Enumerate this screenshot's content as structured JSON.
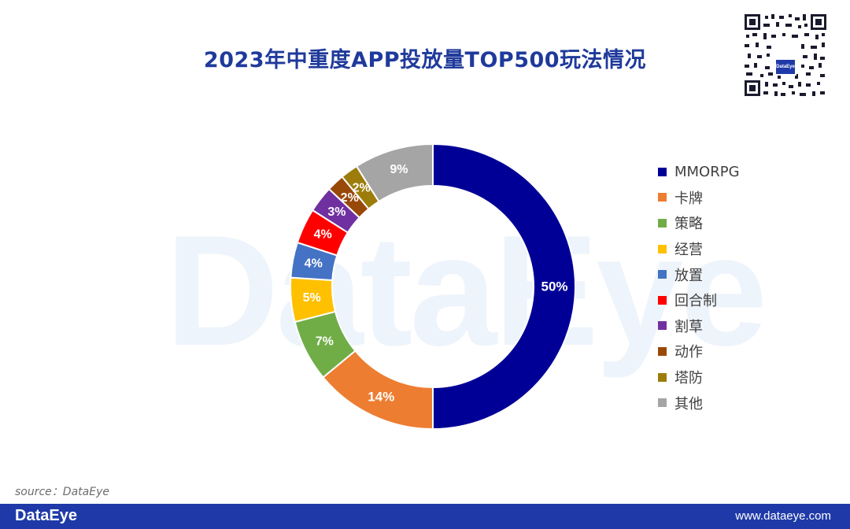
{
  "page": {
    "title": "2023年中重度APP投放量TOP500玩法情况",
    "watermark": "DataEye",
    "source": "source：DataEye",
    "footer_logo": "DataEye",
    "footer_url": "www.dataeye.com",
    "qr_logo": "DataEye"
  },
  "chart_data": {
    "type": "pie",
    "subtype": "donut",
    "title": "2023年中重度APP投放量TOP500玩法情况",
    "unit": "%",
    "categories": [
      "MMORPG",
      "卡牌",
      "策略",
      "经营",
      "放置",
      "回合制",
      "割草",
      "动作",
      "塔防",
      "其他"
    ],
    "values": [
      50,
      14,
      7,
      5,
      4,
      4,
      3,
      2,
      2,
      9
    ],
    "labels": [
      "50%",
      "14%",
      "7%",
      "5%",
      "4%",
      "4%",
      "3%",
      "2%",
      "2%",
      "9%"
    ],
    "colors": [
      "#000096",
      "#ed7d31",
      "#70ad47",
      "#ffc000",
      "#4472c4",
      "#ff0000",
      "#7030a0",
      "#984807",
      "#9c7c0a",
      "#a5a5a5"
    ],
    "legend_position": "right"
  }
}
